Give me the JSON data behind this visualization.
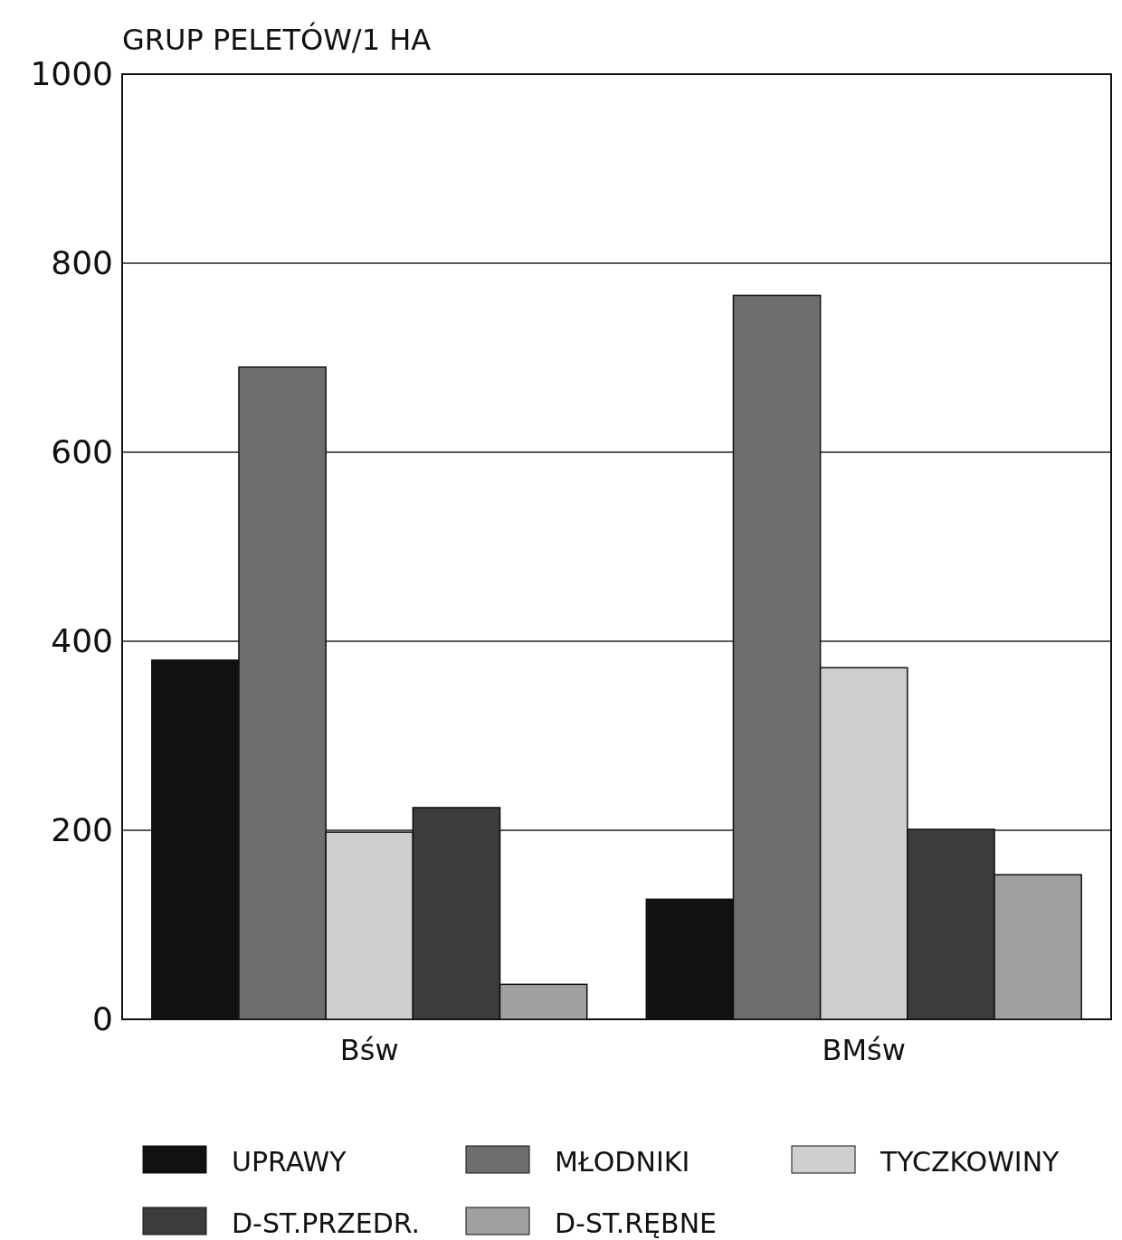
{
  "chart_data": {
    "type": "bar",
    "ylabel": "GRUP PELETÓW/1 HA",
    "categories": [
      "Bśw",
      "BMśw"
    ],
    "series": [
      {
        "name": "UPRAWY",
        "color": "#111111",
        "values": [
          380,
          127
        ]
      },
      {
        "name": "MŁODNIKI",
        "color": "#6e6e6e",
        "values": [
          690,
          766
        ]
      },
      {
        "name": "TYCZKOWINY",
        "color": "#cfcfcf",
        "values": [
          198,
          372
        ]
      },
      {
        "name": "D-ST.PRZEDR.",
        "color": "#3c3c3c",
        "values": [
          224,
          201
        ]
      },
      {
        "name": "D-ST.RĘBNE",
        "color": "#a0a0a0",
        "values": [
          37,
          153
        ]
      }
    ],
    "ylim": [
      0,
      1000
    ],
    "yticks": [
      0,
      200,
      400,
      600,
      800,
      1000
    ],
    "grid": "y",
    "legend": "bottom"
  }
}
